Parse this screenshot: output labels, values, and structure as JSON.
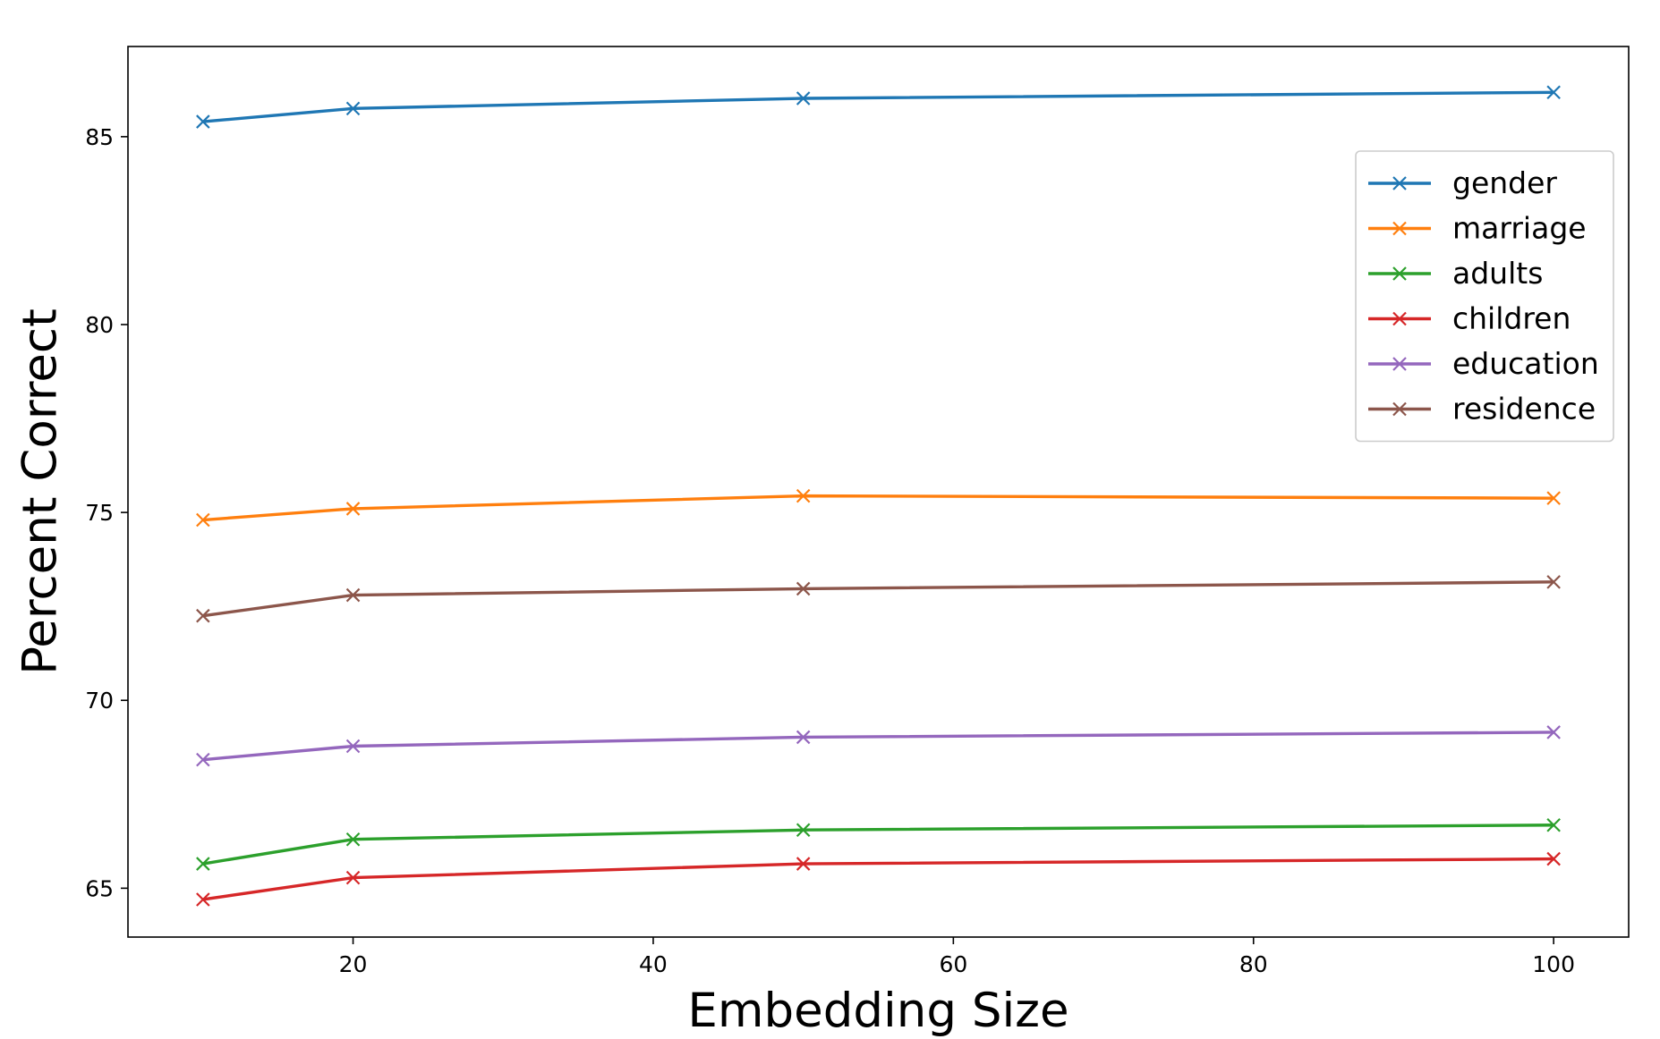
{
  "chart_data": {
    "type": "line",
    "title": "",
    "xlabel": "Embedding Size",
    "ylabel": "Percent Correct",
    "xlim": [
      5,
      105
    ],
    "ylim": [
      63.7,
      87.4
    ],
    "xticks": [
      20,
      40,
      60,
      80,
      100
    ],
    "yticks": [
      65,
      70,
      75,
      80,
      85
    ],
    "grid": false,
    "legend_position": "upper-right",
    "marker": "x",
    "x": [
      10,
      20,
      50,
      100
    ],
    "series": [
      {
        "name": "gender",
        "color": "#1f77b4",
        "values": [
          85.4,
          85.75,
          86.02,
          86.18
        ]
      },
      {
        "name": "marriage",
        "color": "#ff7f0e",
        "values": [
          74.8,
          75.1,
          75.44,
          75.38
        ]
      },
      {
        "name": "adults",
        "color": "#2ca02c",
        "values": [
          65.65,
          66.3,
          66.55,
          66.68
        ]
      },
      {
        "name": "children",
        "color": "#d62728",
        "values": [
          64.7,
          65.28,
          65.65,
          65.78
        ]
      },
      {
        "name": "education",
        "color": "#9467bd",
        "values": [
          68.42,
          68.78,
          69.02,
          69.15
        ]
      },
      {
        "name": "residence",
        "color": "#8c564b",
        "values": [
          72.25,
          72.8,
          72.97,
          73.15
        ]
      }
    ]
  }
}
